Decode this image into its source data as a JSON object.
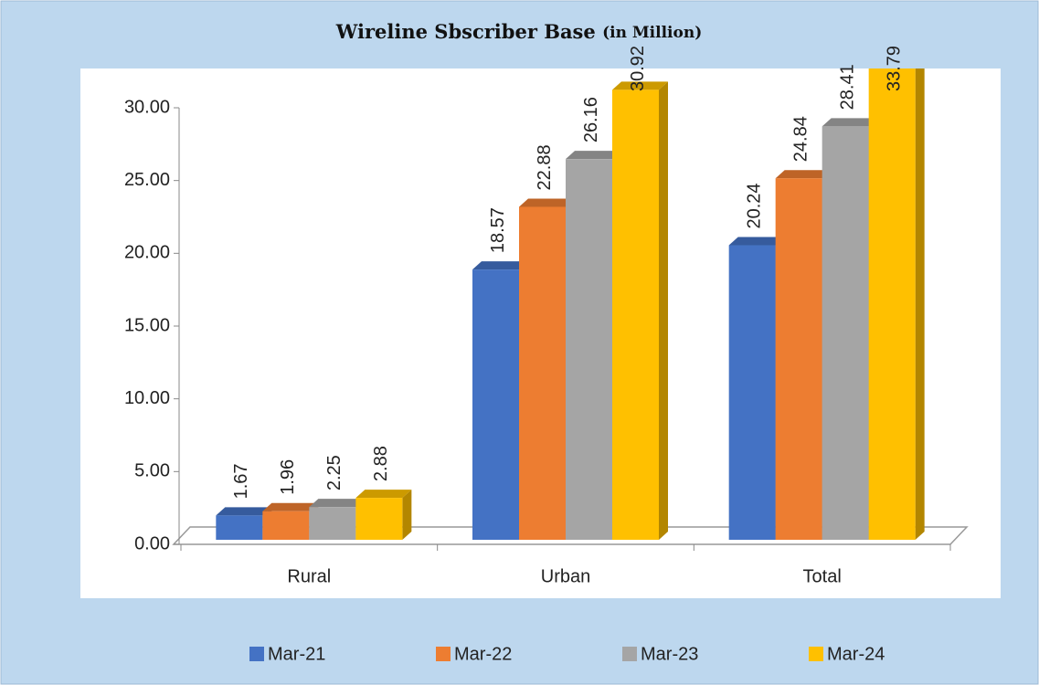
{
  "chart_data": {
    "type": "bar3d",
    "title": "Wireline Sbscriber Base",
    "title_unit": "(in Million)",
    "categories": [
      "Rural",
      "Urban",
      "Total"
    ],
    "series": [
      {
        "name": "Mar-21",
        "color": "#4472c4",
        "values": [
          1.67,
          18.57,
          20.24
        ]
      },
      {
        "name": "Mar-22",
        "color": "#ed7d31",
        "values": [
          1.96,
          22.88,
          24.84
        ]
      },
      {
        "name": "Mar-23",
        "color": "#a5a5a5",
        "values": [
          2.25,
          26.16,
          28.41
        ]
      },
      {
        "name": "Mar-24",
        "color": "#ffc000",
        "values": [
          2.88,
          30.92,
          33.79
        ]
      }
    ],
    "ylim": [
      0,
      30
    ],
    "yticks": [
      {
        "value": 0,
        "label": "0.00"
      },
      {
        "value": 5,
        "label": "5.00"
      },
      {
        "value": 10,
        "label": "10.00"
      },
      {
        "value": 15,
        "label": "15.00"
      },
      {
        "value": 20,
        "label": "20.00"
      },
      {
        "value": 25,
        "label": "25.00"
      },
      {
        "value": 30,
        "label": "30.00"
      }
    ],
    "legend": "bottom"
  }
}
